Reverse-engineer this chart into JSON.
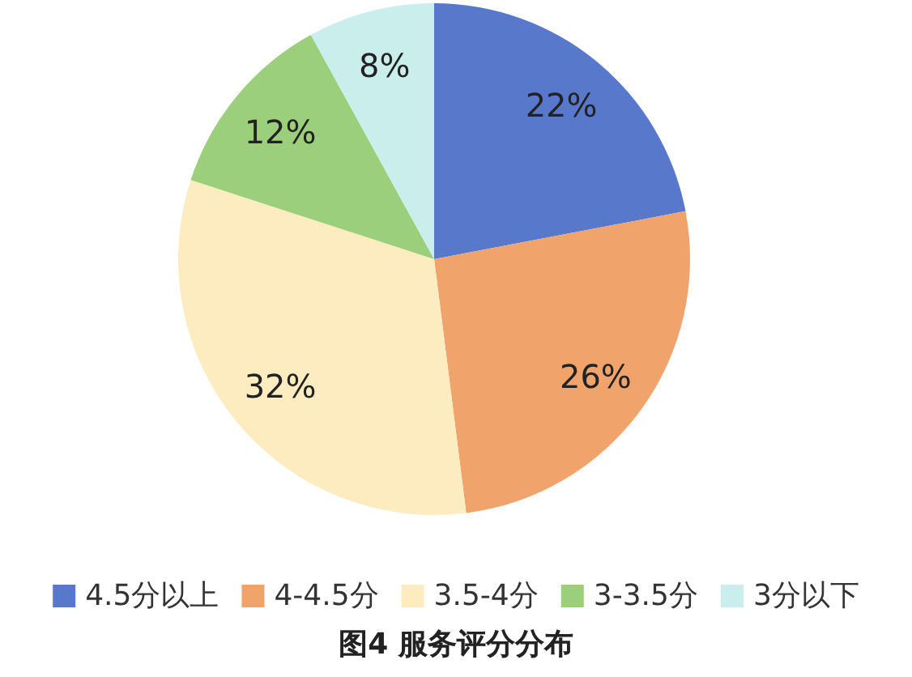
{
  "chart_data": {
    "type": "pie",
    "title": "图4 服务评分分布",
    "categories": [
      "4.5分以上",
      "4-4.5分",
      "3.5-4分",
      "3-3.5分",
      "3分以下"
    ],
    "values": [
      22,
      26,
      32,
      12,
      8
    ],
    "colors": [
      "#5878cc",
      "#f0a46c",
      "#fdecc0",
      "#9ccf7c",
      "#c9eeec"
    ],
    "value_labels": [
      "22%",
      "26%",
      "32%",
      "12%",
      "8%"
    ],
    "legend": "bottom"
  }
}
